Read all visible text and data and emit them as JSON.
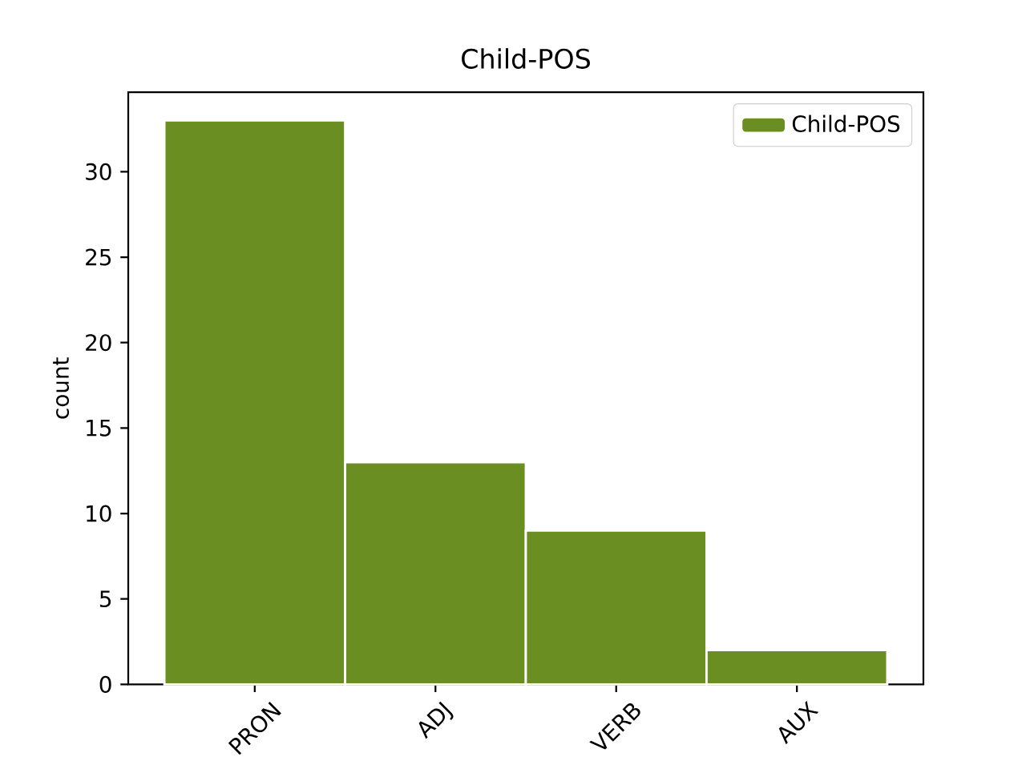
{
  "chart_data": {
    "type": "bar",
    "title": "Child-POS",
    "ylabel": "count",
    "categories": [
      "PRON",
      "ADJ",
      "VERB",
      "AUX"
    ],
    "series": [
      {
        "name": "Child-POS",
        "color": "#6b8e23",
        "values": [
          33,
          13,
          9,
          2
        ]
      }
    ],
    "ylim": [
      0,
      34.65
    ],
    "yticks": [
      0,
      5,
      10,
      15,
      20,
      25,
      30
    ],
    "legend": "top right"
  }
}
